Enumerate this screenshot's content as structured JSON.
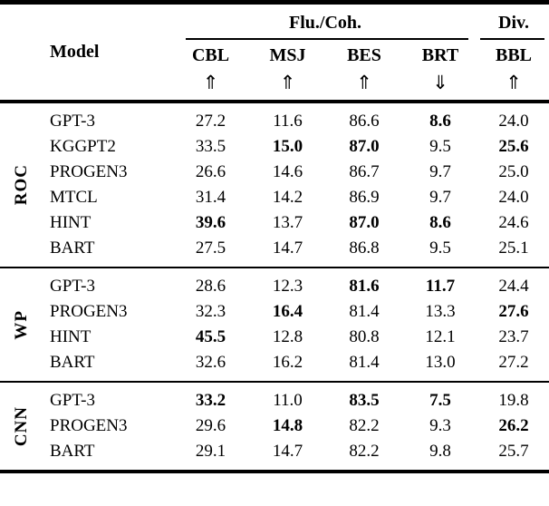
{
  "colors": {
    "text": "#000000",
    "background": "#ffffff",
    "rule": "#000000"
  },
  "header": {
    "model_label": "Model",
    "group_headers": [
      {
        "label": "Flu./Coh.",
        "span": 4
      },
      {
        "label": "Div.",
        "span": 1
      }
    ],
    "columns": [
      {
        "label": "CBL",
        "arrow": "⇑",
        "direction": "up"
      },
      {
        "label": "MSJ",
        "arrow": "⇑",
        "direction": "up"
      },
      {
        "label": "BES",
        "arrow": "⇑",
        "direction": "up"
      },
      {
        "label": "BRT",
        "arrow": "⇓",
        "direction": "down"
      },
      {
        "label": "BBL",
        "arrow": "⇑",
        "direction": "up"
      }
    ]
  },
  "groups": [
    {
      "label": "ROC",
      "rows": [
        {
          "model": "GPT-3",
          "values": [
            {
              "v": "27.2",
              "b": false
            },
            {
              "v": "11.6",
              "b": false
            },
            {
              "v": "86.6",
              "b": false
            },
            {
              "v": "8.6",
              "b": true
            },
            {
              "v": "24.0",
              "b": false
            }
          ]
        },
        {
          "model": "KGGPT2",
          "values": [
            {
              "v": "33.5",
              "b": false
            },
            {
              "v": "15.0",
              "b": true
            },
            {
              "v": "87.0",
              "b": true
            },
            {
              "v": "9.5",
              "b": false
            },
            {
              "v": "25.6",
              "b": true
            }
          ]
        },
        {
          "model": "PROGEN3",
          "values": [
            {
              "v": "26.6",
              "b": false
            },
            {
              "v": "14.6",
              "b": false
            },
            {
              "v": "86.7",
              "b": false
            },
            {
              "v": "9.7",
              "b": false
            },
            {
              "v": "25.0",
              "b": false
            }
          ]
        },
        {
          "model": "MTCL",
          "values": [
            {
              "v": "31.4",
              "b": false
            },
            {
              "v": "14.2",
              "b": false
            },
            {
              "v": "86.9",
              "b": false
            },
            {
              "v": "9.7",
              "b": false
            },
            {
              "v": "24.0",
              "b": false
            }
          ]
        },
        {
          "model": "HINT",
          "values": [
            {
              "v": "39.6",
              "b": true
            },
            {
              "v": "13.7",
              "b": false
            },
            {
              "v": "87.0",
              "b": true
            },
            {
              "v": "8.6",
              "b": true
            },
            {
              "v": "24.6",
              "b": false
            }
          ]
        },
        {
          "model": "BART",
          "values": [
            {
              "v": "27.5",
              "b": false
            },
            {
              "v": "14.7",
              "b": false
            },
            {
              "v": "86.8",
              "b": false
            },
            {
              "v": "9.5",
              "b": false
            },
            {
              "v": "25.1",
              "b": false
            }
          ]
        }
      ]
    },
    {
      "label": "WP",
      "rows": [
        {
          "model": "GPT-3",
          "values": [
            {
              "v": "28.6",
              "b": false
            },
            {
              "v": "12.3",
              "b": false
            },
            {
              "v": "81.6",
              "b": true
            },
            {
              "v": "11.7",
              "b": true
            },
            {
              "v": "24.4",
              "b": false
            }
          ]
        },
        {
          "model": "PROGEN3",
          "values": [
            {
              "v": "32.3",
              "b": false
            },
            {
              "v": "16.4",
              "b": true
            },
            {
              "v": "81.4",
              "b": false
            },
            {
              "v": "13.3",
              "b": false
            },
            {
              "v": "27.6",
              "b": true
            }
          ]
        },
        {
          "model": "HINT",
          "values": [
            {
              "v": "45.5",
              "b": true
            },
            {
              "v": "12.8",
              "b": false
            },
            {
              "v": "80.8",
              "b": false
            },
            {
              "v": "12.1",
              "b": false
            },
            {
              "v": "23.7",
              "b": false
            }
          ]
        },
        {
          "model": "BART",
          "values": [
            {
              "v": "32.6",
              "b": false
            },
            {
              "v": "16.2",
              "b": false
            },
            {
              "v": "81.4",
              "b": false
            },
            {
              "v": "13.0",
              "b": false
            },
            {
              "v": "27.2",
              "b": false
            }
          ]
        }
      ]
    },
    {
      "label": "CNN",
      "rows": [
        {
          "model": "GPT-3",
          "values": [
            {
              "v": "33.2",
              "b": true
            },
            {
              "v": "11.0",
              "b": false
            },
            {
              "v": "83.5",
              "b": true
            },
            {
              "v": "7.5",
              "b": true
            },
            {
              "v": "19.8",
              "b": false
            }
          ]
        },
        {
          "model": "PROGEN3",
          "values": [
            {
              "v": "29.6",
              "b": false
            },
            {
              "v": "14.8",
              "b": true
            },
            {
              "v": "82.2",
              "b": false
            },
            {
              "v": "9.3",
              "b": false
            },
            {
              "v": "26.2",
              "b": true
            }
          ]
        },
        {
          "model": "BART",
          "values": [
            {
              "v": "29.1",
              "b": false
            },
            {
              "v": "14.7",
              "b": false
            },
            {
              "v": "82.2",
              "b": false
            },
            {
              "v": "9.8",
              "b": false
            },
            {
              "v": "25.7",
              "b": false
            }
          ]
        }
      ]
    }
  ]
}
